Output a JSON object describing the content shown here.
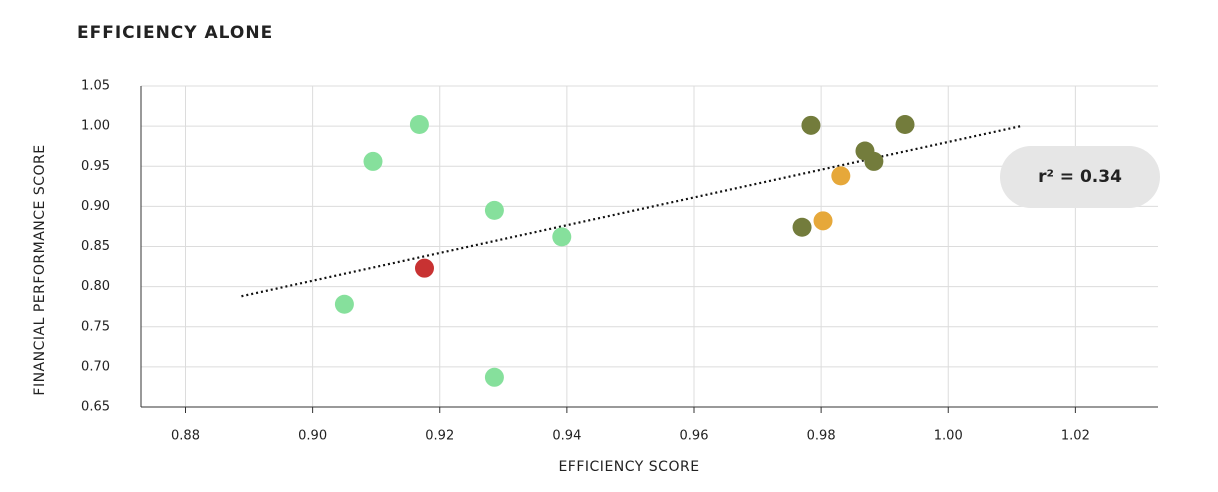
{
  "chart_data": {
    "type": "scatter",
    "title": "EFFICIENCY ALONE",
    "xlabel": "EFFICIENCY SCORE",
    "ylabel": "FINANCIAL PERFORMANCE SCORE",
    "xlim": [
      0.873,
      1.033
    ],
    "ylim": [
      0.65,
      1.05
    ],
    "xticks": [
      0.88,
      {
        "value": 0.9,
        "label": "0.90"
      },
      0.92,
      0.94,
      0.96,
      0.98,
      {
        "value": 1.0,
        "label": "1.00"
      },
      1.02
    ],
    "yticks": [
      0.65,
      {
        "value": 0.7,
        "label": "0.70"
      },
      0.75,
      {
        "value": 0.8,
        "label": "0.80"
      },
      0.85,
      {
        "value": 0.9,
        "label": "0.90"
      },
      0.95,
      {
        "value": 1.0,
        "label": "1.00"
      },
      1.05
    ],
    "grid": true,
    "series": [
      {
        "color": "#86e09c",
        "x": [
          0.9168,
          0.9095,
          0.9286,
          0.9392,
          0.905,
          0.9286
        ],
        "y": [
          1.002,
          0.956,
          0.895,
          0.862,
          0.778,
          0.687
        ]
      },
      {
        "color": "#c83232",
        "x": [
          0.9176
        ],
        "y": [
          0.823
        ]
      },
      {
        "color": "#737c3c",
        "x": [
          0.9784,
          0.9932,
          0.9869,
          0.9883,
          0.977
        ],
        "y": [
          1.001,
          1.002,
          0.969,
          0.956,
          0.874
        ]
      },
      {
        "color": "#e6a83a",
        "x": [
          0.9831,
          0.9803
        ],
        "y": [
          0.938,
          0.882
        ]
      }
    ],
    "trendline": {
      "x": [
        0.8888,
        1.0114
      ],
      "y": [
        0.788,
        1.0
      ]
    },
    "annotation": "r² = 0.34"
  }
}
